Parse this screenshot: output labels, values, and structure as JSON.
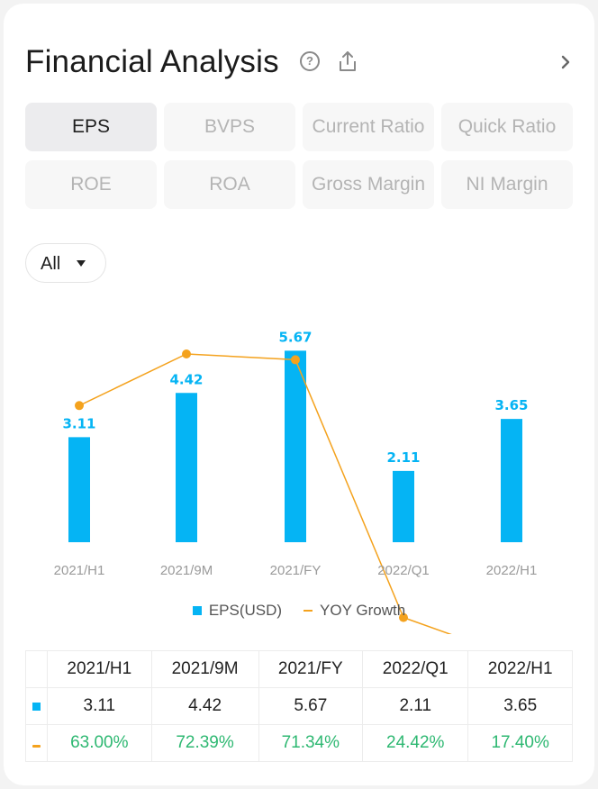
{
  "header": {
    "title": "Financial Analysis"
  },
  "tabs": [
    {
      "label": "EPS",
      "active": true
    },
    {
      "label": "BVPS",
      "active": false
    },
    {
      "label": "Current Ratio",
      "active": false
    },
    {
      "label": "Quick Ratio",
      "active": false
    },
    {
      "label": "ROE",
      "active": false
    },
    {
      "label": "ROA",
      "active": false
    },
    {
      "label": "Gross Margin",
      "active": false
    },
    {
      "label": "NI Margin",
      "active": false
    }
  ],
  "filter": {
    "selected": "All"
  },
  "colors": {
    "bar": "#05b4f4",
    "line": "#f4a21d",
    "positive": "#2eb872"
  },
  "chart_data": {
    "type": "bar",
    "categories": [
      "2021/H1",
      "2021/9M",
      "2021/FY",
      "2022/Q1",
      "2022/H1"
    ],
    "series": [
      {
        "name": "EPS(USD)",
        "type": "bar",
        "values": [
          3.11,
          4.42,
          5.67,
          2.11,
          3.65
        ],
        "labels": [
          "3.11",
          "4.42",
          "5.67",
          "2.11",
          "3.65"
        ]
      },
      {
        "name": "YOY Growth",
        "type": "line",
        "values": [
          63.0,
          72.39,
          71.34,
          24.42,
          17.4
        ]
      }
    ],
    "legend_position": "bottom",
    "grid": false
  },
  "table": {
    "headers": [
      "2021/H1",
      "2021/9M",
      "2021/FY",
      "2022/Q1",
      "2022/H1"
    ],
    "eps_row": [
      "3.11",
      "4.42",
      "5.67",
      "2.11",
      "3.65"
    ],
    "yoy_row": [
      "63.00%",
      "72.39%",
      "71.34%",
      "24.42%",
      "17.40%"
    ]
  }
}
